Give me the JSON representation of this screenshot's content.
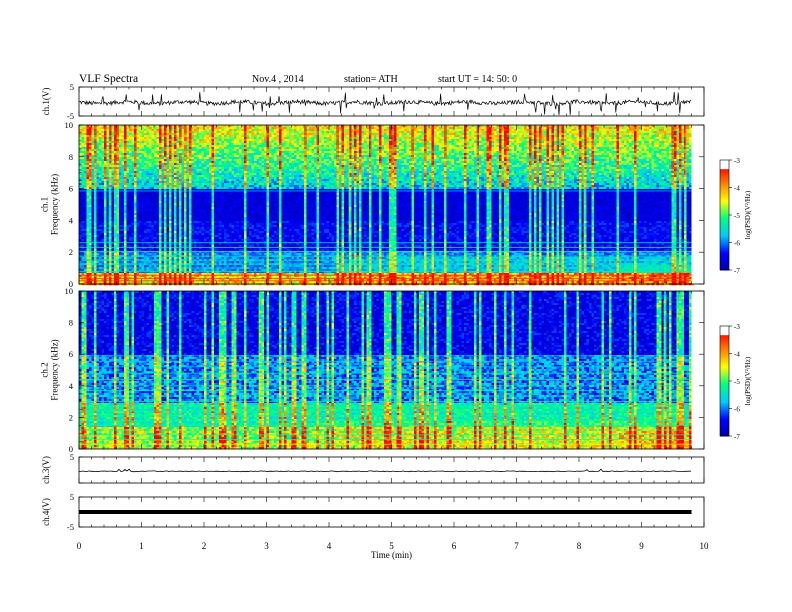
{
  "header": {
    "title": "VLF  Spectra",
    "date": "Nov.4  , 2014",
    "station": "station= ATH",
    "start": "start  UT  =   14: 50: 0"
  },
  "chart_data": {
    "type": "heatmap",
    "x": {
      "label": "Time  (min)",
      "range": [
        0,
        10
      ],
      "ticks": [
        0,
        1,
        2,
        3,
        4,
        5,
        6,
        7,
        8,
        9,
        10
      ],
      "data_end": 9.8
    },
    "panels": [
      {
        "id": "ch1-waveform",
        "type": "line",
        "ylabel": "ch.1(V)",
        "ylim": [
          -5,
          5
        ],
        "yticks": [
          "5",
          "-5"
        ],
        "trace": "noisy waveform around -0.5 V"
      },
      {
        "id": "ch1-spectrogram",
        "type": "heatmap",
        "ylabel": "ch.1\nFrequency (kHz)",
        "ylim": [
          0,
          10
        ],
        "yticks": [
          0,
          2,
          4,
          6,
          8,
          10
        ],
        "colorbar": {
          "label": "log(PSD)(V²/Hz)",
          "range": [
            -7,
            -3
          ],
          "ticks": [
            "-3",
            "-4",
            "-5",
            "-6",
            "-7"
          ]
        }
      },
      {
        "id": "ch2-spectrogram",
        "type": "heatmap",
        "ylabel": "ch.2\nFrequency (kHz)",
        "ylim": [
          0,
          10
        ],
        "yticks": [
          0,
          2,
          4,
          6,
          8,
          10
        ],
        "colorbar": {
          "label": "log(PSD)(V²/Hz)",
          "range": [
            -7,
            -3
          ],
          "ticks": [
            "-3",
            "-4",
            "-5",
            "-6",
            "-7"
          ]
        }
      },
      {
        "id": "ch3-waveform",
        "type": "line",
        "ylabel": "ch.3(V)",
        "ylim": [
          -5,
          5
        ],
        "yticks": [
          "5"
        ],
        "trace": "flat near -0.5 V"
      },
      {
        "id": "ch4-waveform",
        "type": "line",
        "ylabel": "ch.4(V)",
        "ylim": [
          -5,
          5
        ],
        "yticks": [
          "5",
          "-5"
        ],
        "trace": "thick flat line near 0 V"
      }
    ],
    "colormap": [
      "#0000a0",
      "#0000ff",
      "#00c8ff",
      "#00ff80",
      "#ffff00",
      "#ff8000",
      "#ff0000",
      "#ffffff"
    ],
    "band_shift_times": [
      4.05,
      7.25,
      8.6
    ]
  }
}
